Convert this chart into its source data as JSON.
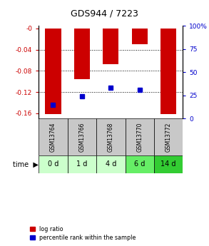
{
  "title": "GDS944 / 7223",
  "samples": [
    "GSM13764",
    "GSM13766",
    "GSM13768",
    "GSM13770",
    "GSM13772"
  ],
  "time_labels": [
    "0 d",
    "1 d",
    "4 d",
    "6 d",
    "14 d"
  ],
  "log_ratios": [
    -0.161,
    -0.096,
    -0.068,
    -0.03,
    -0.161
  ],
  "percentile_ranks": [
    15,
    24,
    33,
    31,
    null
  ],
  "ylim_left": [
    -0.17,
    0.005
  ],
  "ylim_right": [
    -0.85,
    5.0
  ],
  "yticks_left": [
    0.0,
    -0.04,
    -0.08,
    -0.12,
    -0.16
  ],
  "ytick_labels_left": [
    "-0",
    "-0.04",
    "-0.08",
    "-0.12",
    "-0.16"
  ],
  "yticks_right_vals": [
    0,
    25,
    50,
    75,
    100
  ],
  "ytick_labels_right": [
    "0",
    "25",
    "50",
    "75",
    "100%"
  ],
  "bar_color": "#cc0000",
  "dot_color": "#0000cc",
  "bg_color": "#ffffff",
  "gsm_bg": "#c8c8c8",
  "time_bg_colors": [
    "#ccffcc",
    "#ccffcc",
    "#ccffcc",
    "#66ee66",
    "#33cc33"
  ],
  "left_axis_color": "#cc0000",
  "right_axis_color": "#0000cc",
  "bar_width": 0.55,
  "grid_yticks": [
    -0.04,
    -0.08,
    -0.12
  ]
}
